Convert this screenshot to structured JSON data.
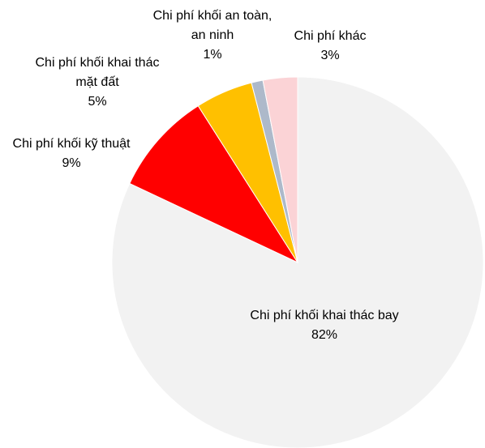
{
  "chart_data": {
    "type": "pie",
    "categories": [
      "Chi phí khối khai thác bay",
      "Chi phí khối kỹ thuật",
      "Chi phí khối khai thác mặt đất",
      "Chi phí khối an toàn, an ninh",
      "Chi phí khác"
    ],
    "values": [
      82,
      9,
      5,
      1,
      3
    ],
    "value_labels": [
      "82%",
      "9%",
      "5%",
      "1%",
      "3%"
    ],
    "colors": [
      "#f2f2f2",
      "#ff0000",
      "#ffc000",
      "#adb9ca",
      "#fbd3d6"
    ]
  }
}
